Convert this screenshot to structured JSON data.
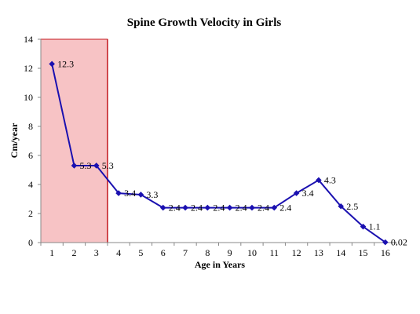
{
  "chart_data": {
    "type": "line",
    "title": "Spine Growth Velocity in Girls",
    "xlabel": "Age in Years",
    "ylabel": "Cm/year",
    "x": [
      1,
      2,
      3,
      4,
      5,
      6,
      7,
      8,
      9,
      10,
      11,
      12,
      13,
      14,
      15,
      16
    ],
    "x_tick_labels": [
      "1",
      "2",
      "3",
      "4",
      "5",
      "6",
      "7",
      "8",
      "9",
      "10",
      "11",
      "12",
      "13",
      "14",
      "15",
      "16"
    ],
    "y_tick_labels": [
      "0",
      "2",
      "4",
      "6",
      "8",
      "10",
      "12",
      "14"
    ],
    "ylim": [
      0,
      14
    ],
    "series": [
      {
        "values": [
          12.3,
          5.3,
          5.3,
          3.4,
          3.3,
          2.4,
          2.4,
          2.4,
          2.4,
          2.4,
          2.4,
          3.4,
          4.3,
          2.5,
          1.1,
          0.02
        ],
        "labels": [
          "12.3",
          "5.3",
          "5.3",
          "3.4",
          "3.3",
          "2.4",
          "2.4",
          "2.4",
          "2.4",
          "2.4",
          "2.4",
          "3.4",
          "4.3",
          "2.5",
          "1.1",
          "0.02"
        ],
        "color": "#1A10B0"
      }
    ],
    "highlight_region": {
      "x_range": [
        0.5,
        3.5
      ],
      "fill_color": "#F7C3C5",
      "border_color": "#C4191F"
    },
    "grid": false,
    "legend": "none",
    "plot_border_color": "#888888"
  }
}
